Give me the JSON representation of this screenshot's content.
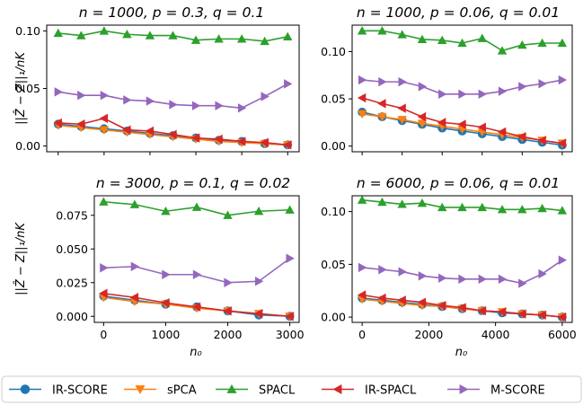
{
  "figure": {
    "ylabel": "||Ẑ − Z||₁/nK",
    "xlabel": "n₀"
  },
  "legend": {
    "placement": "bottom-center",
    "entries": [
      {
        "name": "IR-SCORE",
        "color": "#1f77b4",
        "marker": "circle"
      },
      {
        "name": "sPCA",
        "color": "#ff7f0e",
        "marker": "triangle-down"
      },
      {
        "name": "SPACL",
        "color": "#2ca02c",
        "marker": "triangle-up"
      },
      {
        "name": "IR-SPACL",
        "color": "#d62728",
        "marker": "triangle-left"
      },
      {
        "name": "M-SCORE",
        "color": "#9467bd",
        "marker": "triangle-right"
      }
    ]
  },
  "chart_data": [
    {
      "type": "line",
      "title": "n = 1000, p = 0.3, q = 0.1",
      "xlabel": "",
      "ylabel": "||Ẑ − Z||₁/nK",
      "xlim": [
        -50,
        1050
      ],
      "ylim": [
        -0.005,
        0.105
      ],
      "xticks": [],
      "yticks": [
        0.0,
        0.05,
        0.1
      ],
      "ytick_labels": [
        "0.00",
        "0.05",
        "0.10"
      ],
      "x": [
        0,
        100,
        200,
        300,
        400,
        500,
        600,
        700,
        800,
        900,
        1000
      ],
      "series": [
        {
          "name": "IR-SCORE",
          "values": [
            0.019,
            0.017,
            0.015,
            0.013,
            0.011,
            0.009,
            0.007,
            0.005,
            0.004,
            0.002,
            0.001
          ]
        },
        {
          "name": "sPCA",
          "values": [
            0.018,
            0.016,
            0.014,
            0.012,
            0.01,
            0.008,
            0.006,
            0.004,
            0.003,
            0.002,
            0.001
          ]
        },
        {
          "name": "SPACL",
          "values": [
            0.098,
            0.096,
            0.1,
            0.097,
            0.096,
            0.096,
            0.092,
            0.093,
            0.093,
            0.091,
            0.095
          ]
        },
        {
          "name": "IR-SPACL",
          "values": [
            0.02,
            0.019,
            0.024,
            0.014,
            0.013,
            0.01,
            0.007,
            0.006,
            0.004,
            0.003,
            0.001
          ]
        },
        {
          "name": "M-SCORE",
          "values": [
            0.047,
            0.044,
            0.044,
            0.04,
            0.039,
            0.036,
            0.035,
            0.035,
            0.033,
            0.043,
            0.054
          ]
        }
      ]
    },
    {
      "type": "line",
      "title": "n = 1000, p = 0.06, q = 0.01",
      "xlabel": "",
      "ylabel": "",
      "xlim": [
        -50,
        1050
      ],
      "ylim": [
        -0.006,
        0.128
      ],
      "xticks": [],
      "yticks": [
        0.0,
        0.05,
        0.1
      ],
      "ytick_labels": [
        "0.00",
        "0.05",
        "0.10"
      ],
      "x": [
        0,
        100,
        200,
        300,
        400,
        500,
        600,
        700,
        800,
        900,
        1000
      ],
      "series": [
        {
          "name": "IR-SCORE",
          "values": [
            0.036,
            0.031,
            0.027,
            0.023,
            0.019,
            0.016,
            0.013,
            0.01,
            0.007,
            0.004,
            0.001
          ]
        },
        {
          "name": "sPCA",
          "values": [
            0.034,
            0.031,
            0.028,
            0.024,
            0.021,
            0.018,
            0.015,
            0.012,
            0.009,
            0.006,
            0.003
          ]
        },
        {
          "name": "SPACL",
          "values": [
            0.122,
            0.122,
            0.118,
            0.113,
            0.112,
            0.109,
            0.114,
            0.101,
            0.107,
            0.109,
            0.109
          ]
        },
        {
          "name": "IR-SPACL",
          "values": [
            0.051,
            0.045,
            0.04,
            0.031,
            0.025,
            0.023,
            0.02,
            0.015,
            0.01,
            0.006,
            0.003
          ]
        },
        {
          "name": "M-SCORE",
          "values": [
            0.07,
            0.068,
            0.068,
            0.063,
            0.055,
            0.055,
            0.055,
            0.058,
            0.063,
            0.066,
            0.07
          ]
        }
      ]
    },
    {
      "type": "line",
      "title": "n = 3000, p = 0.1, q = 0.02",
      "xlabel": "n₀",
      "ylabel": "||Ẑ − Z||₁/nK",
      "xlim": [
        -150,
        3150
      ],
      "ylim": [
        -0.0045,
        0.0895
      ],
      "xticks": [
        0,
        1000,
        2000,
        3000
      ],
      "xtick_labels": [
        "0",
        "1000",
        "2000",
        "3000"
      ],
      "yticks": [
        0.0,
        0.025,
        0.05,
        0.075
      ],
      "ytick_labels": [
        "0.000",
        "0.025",
        "0.050",
        "0.075"
      ],
      "x": [
        0,
        500,
        1000,
        1500,
        2000,
        2500,
        3000
      ],
      "series": [
        {
          "name": "IR-SCORE",
          "values": [
            0.015,
            0.012,
            0.009,
            0.007,
            0.004,
            0.001,
            0.0
          ]
        },
        {
          "name": "sPCA",
          "values": [
            0.014,
            0.011,
            0.009,
            0.006,
            0.004,
            0.002,
            0.0
          ]
        },
        {
          "name": "SPACL",
          "values": [
            0.085,
            0.083,
            0.078,
            0.081,
            0.075,
            0.078,
            0.079
          ]
        },
        {
          "name": "IR-SPACL",
          "values": [
            0.017,
            0.014,
            0.01,
            0.007,
            0.004,
            0.002,
            0.0
          ]
        },
        {
          "name": "M-SCORE",
          "values": [
            0.036,
            0.037,
            0.031,
            0.031,
            0.025,
            0.026,
            0.043
          ]
        }
      ]
    },
    {
      "type": "line",
      "title": "n = 6000, p = 0.06, q = 0.01",
      "xlabel": "n₀",
      "ylabel": "",
      "xlim": [
        -300,
        6300
      ],
      "ylim": [
        -0.005,
        0.115
      ],
      "xticks": [
        0,
        2000,
        4000,
        6000
      ],
      "xtick_labels": [
        "0",
        "2000",
        "4000",
        "6000"
      ],
      "yticks": [
        0.0,
        0.05,
        0.1
      ],
      "ytick_labels": [
        "0.00",
        "0.05",
        "0.10"
      ],
      "x": [
        0,
        600,
        1200,
        1800,
        2400,
        3000,
        3600,
        4200,
        4800,
        5400,
        6000
      ],
      "series": [
        {
          "name": "IR-SCORE",
          "values": [
            0.018,
            0.016,
            0.014,
            0.012,
            0.01,
            0.008,
            0.006,
            0.004,
            0.003,
            0.002,
            0.0
          ]
        },
        {
          "name": "sPCA",
          "values": [
            0.017,
            0.015,
            0.013,
            0.011,
            0.01,
            0.008,
            0.006,
            0.005,
            0.003,
            0.002,
            0.0
          ]
        },
        {
          "name": "SPACL",
          "values": [
            0.111,
            0.109,
            0.107,
            0.108,
            0.104,
            0.104,
            0.104,
            0.102,
            0.102,
            0.103,
            0.101
          ]
        },
        {
          "name": "IR-SPACL",
          "values": [
            0.021,
            0.018,
            0.016,
            0.014,
            0.011,
            0.009,
            0.006,
            0.005,
            0.003,
            0.002,
            0.0
          ]
        },
        {
          "name": "M-SCORE",
          "values": [
            0.047,
            0.045,
            0.043,
            0.039,
            0.037,
            0.036,
            0.036,
            0.036,
            0.032,
            0.041,
            0.054
          ]
        }
      ]
    }
  ]
}
